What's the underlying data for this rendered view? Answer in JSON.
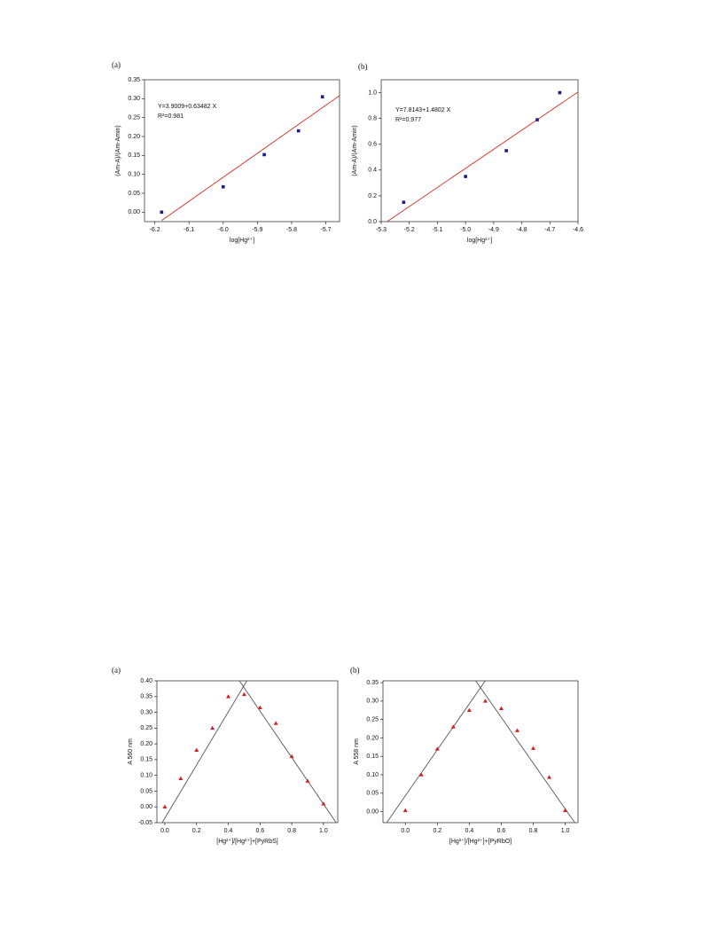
{
  "chart_data": [
    {
      "type": "scatter",
      "panel_label": "(a)",
      "x_label": "log[Hg²⁺]",
      "y_label": "(Am-A)/(Am-Amin)",
      "xlim": [
        -6.23,
        -5.66
      ],
      "xticks": [
        -6.2,
        -6.1,
        {
          "value": -6.0,
          "label": "-6.0"
        },
        -5.9,
        -5.8,
        -5.7
      ],
      "ylim": [
        -0.025,
        0.35
      ],
      "yticks": [
        {
          "value": 0,
          "label": "0.00"
        },
        0.05,
        {
          "value": 0.1,
          "label": "0.10"
        },
        0.15,
        {
          "value": 0.2,
          "label": "0.20"
        },
        0.25,
        {
          "value": 0.3,
          "label": "0.30"
        },
        0.35
      ],
      "series": [
        {
          "marker": "square",
          "color": "#1c1c8a",
          "x": [
            -6.18,
            -6.0,
            -5.88,
            -5.78,
            -5.71
          ],
          "values": [
            0.0,
            0.067,
            0.152,
            0.215,
            0.305
          ]
        }
      ],
      "lines": [
        {
          "color": "#d42a1e",
          "x": [
            -6.18,
            -5.66
          ],
          "values": [
            -0.022,
            0.308
          ]
        }
      ],
      "annotations": [
        "Y=3.9009+0.63482 X",
        "R²=0.981"
      ]
    },
    {
      "type": "scatter",
      "panel_label": "(b)",
      "x_label": "log[Hg²⁺]",
      "y_label": "(Am-A)/(Am-Amin)",
      "xlim": [
        -5.3,
        -4.6
      ],
      "xticks": [
        -5.3,
        -5.2,
        -5.1,
        {
          "value": -5.0,
          "label": "-5.0"
        },
        -4.9,
        -4.8,
        -4.7,
        -4.6
      ],
      "ylim": [
        0,
        1.1
      ],
      "yticks": [
        {
          "value": 0,
          "label": "0.0"
        },
        0.2,
        0.4,
        0.6,
        0.8,
        {
          "value": 1,
          "label": "1.0"
        }
      ],
      "series": [
        {
          "marker": "square",
          "color": "#1c1c8a",
          "x": [
            -5.22,
            -5.0,
            -4.855,
            -4.745,
            -4.665
          ],
          "values": [
            0.15,
            0.35,
            0.55,
            0.79,
            1.0
          ]
        }
      ],
      "lines": [
        {
          "color": "#d42a1e",
          "x": [
            -5.279,
            -4.6
          ],
          "values": [
            0,
            1.005
          ]
        }
      ],
      "annotations": [
        "Y=7.8143+1.4802 X",
        "R²=0.977"
      ]
    },
    {
      "type": "scatter",
      "panel_label": "(a)",
      "x_label": "[Hg²⁺]/[Hg²⁺]+[PyRbS]",
      "y_label": "A 560 nm",
      "xlim": [
        -0.05,
        1.09
      ],
      "xticks": [
        {
          "value": 0,
          "label": "0.0"
        },
        0.2,
        0.4,
        0.6,
        0.8,
        {
          "value": 1,
          "label": "1.0"
        }
      ],
      "ylim": [
        -0.05,
        0.4
      ],
      "yticks": [
        -0.05,
        {
          "value": 0,
          "label": "0.00"
        },
        0.05,
        {
          "value": 0.1,
          "label": "0.10"
        },
        0.15,
        {
          "value": 0.2,
          "label": "0.20"
        },
        0.25,
        {
          "value": 0.3,
          "label": "0.30"
        },
        0.35,
        {
          "value": 0.4,
          "label": "0.40"
        }
      ],
      "series": [
        {
          "marker": "triangle",
          "color": "#d42020",
          "x": [
            0,
            0.1,
            0.2,
            0.3,
            0.4,
            0.5,
            0.6,
            0.7,
            0.8,
            0.9,
            1
          ],
          "values": [
            0.0,
            0.09,
            0.18,
            0.25,
            0.35,
            0.357,
            0.315,
            0.265,
            0.16,
            0.082,
            0.01
          ]
        }
      ],
      "lines": [
        {
          "color": "#555555",
          "x": [
            -0.017,
            0.517
          ],
          "values": [
            -0.05,
            0.4
          ]
        },
        {
          "color": "#555555",
          "x": [
            0.47,
            1.08
          ],
          "values": [
            0.4,
            -0.05
          ]
        }
      ]
    },
    {
      "type": "scatter",
      "panel_label": "(b)",
      "x_label": "[Hg²⁺]/[Hg²⁺]+[PyRbO]",
      "y_label": "A 558 nm",
      "xlim": [
        -0.14,
        1.08
      ],
      "xticks": [
        {
          "value": 0,
          "label": "0.0"
        },
        0.2,
        0.4,
        0.6,
        0.8,
        {
          "value": 1,
          "label": "1.0"
        }
      ],
      "ylim": [
        -0.03,
        0.355
      ],
      "yticks": [
        {
          "value": 0,
          "label": "0.00"
        },
        0.05,
        {
          "value": 0.1,
          "label": "0.10"
        },
        0.15,
        {
          "value": 0.2,
          "label": "0.20"
        },
        0.25,
        {
          "value": 0.3,
          "label": "0.30"
        },
        0.35
      ],
      "series": [
        {
          "marker": "triangle",
          "color": "#d42020",
          "x": [
            0,
            0.1,
            0.2,
            0.3,
            0.4,
            0.5,
            0.6,
            0.7,
            0.8,
            0.9,
            1
          ],
          "values": [
            0.003,
            0.1,
            0.17,
            0.23,
            0.275,
            0.3,
            0.28,
            0.22,
            0.172,
            0.093,
            0.003
          ]
        }
      ],
      "lines": [
        {
          "color": "#555555",
          "x": [
            -0.117,
            0.5
          ],
          "values": [
            -0.03,
            0.355
          ]
        },
        {
          "color": "#555555",
          "x": [
            0.44,
            1.06
          ],
          "values": [
            0.355,
            -0.03
          ]
        }
      ]
    }
  ]
}
